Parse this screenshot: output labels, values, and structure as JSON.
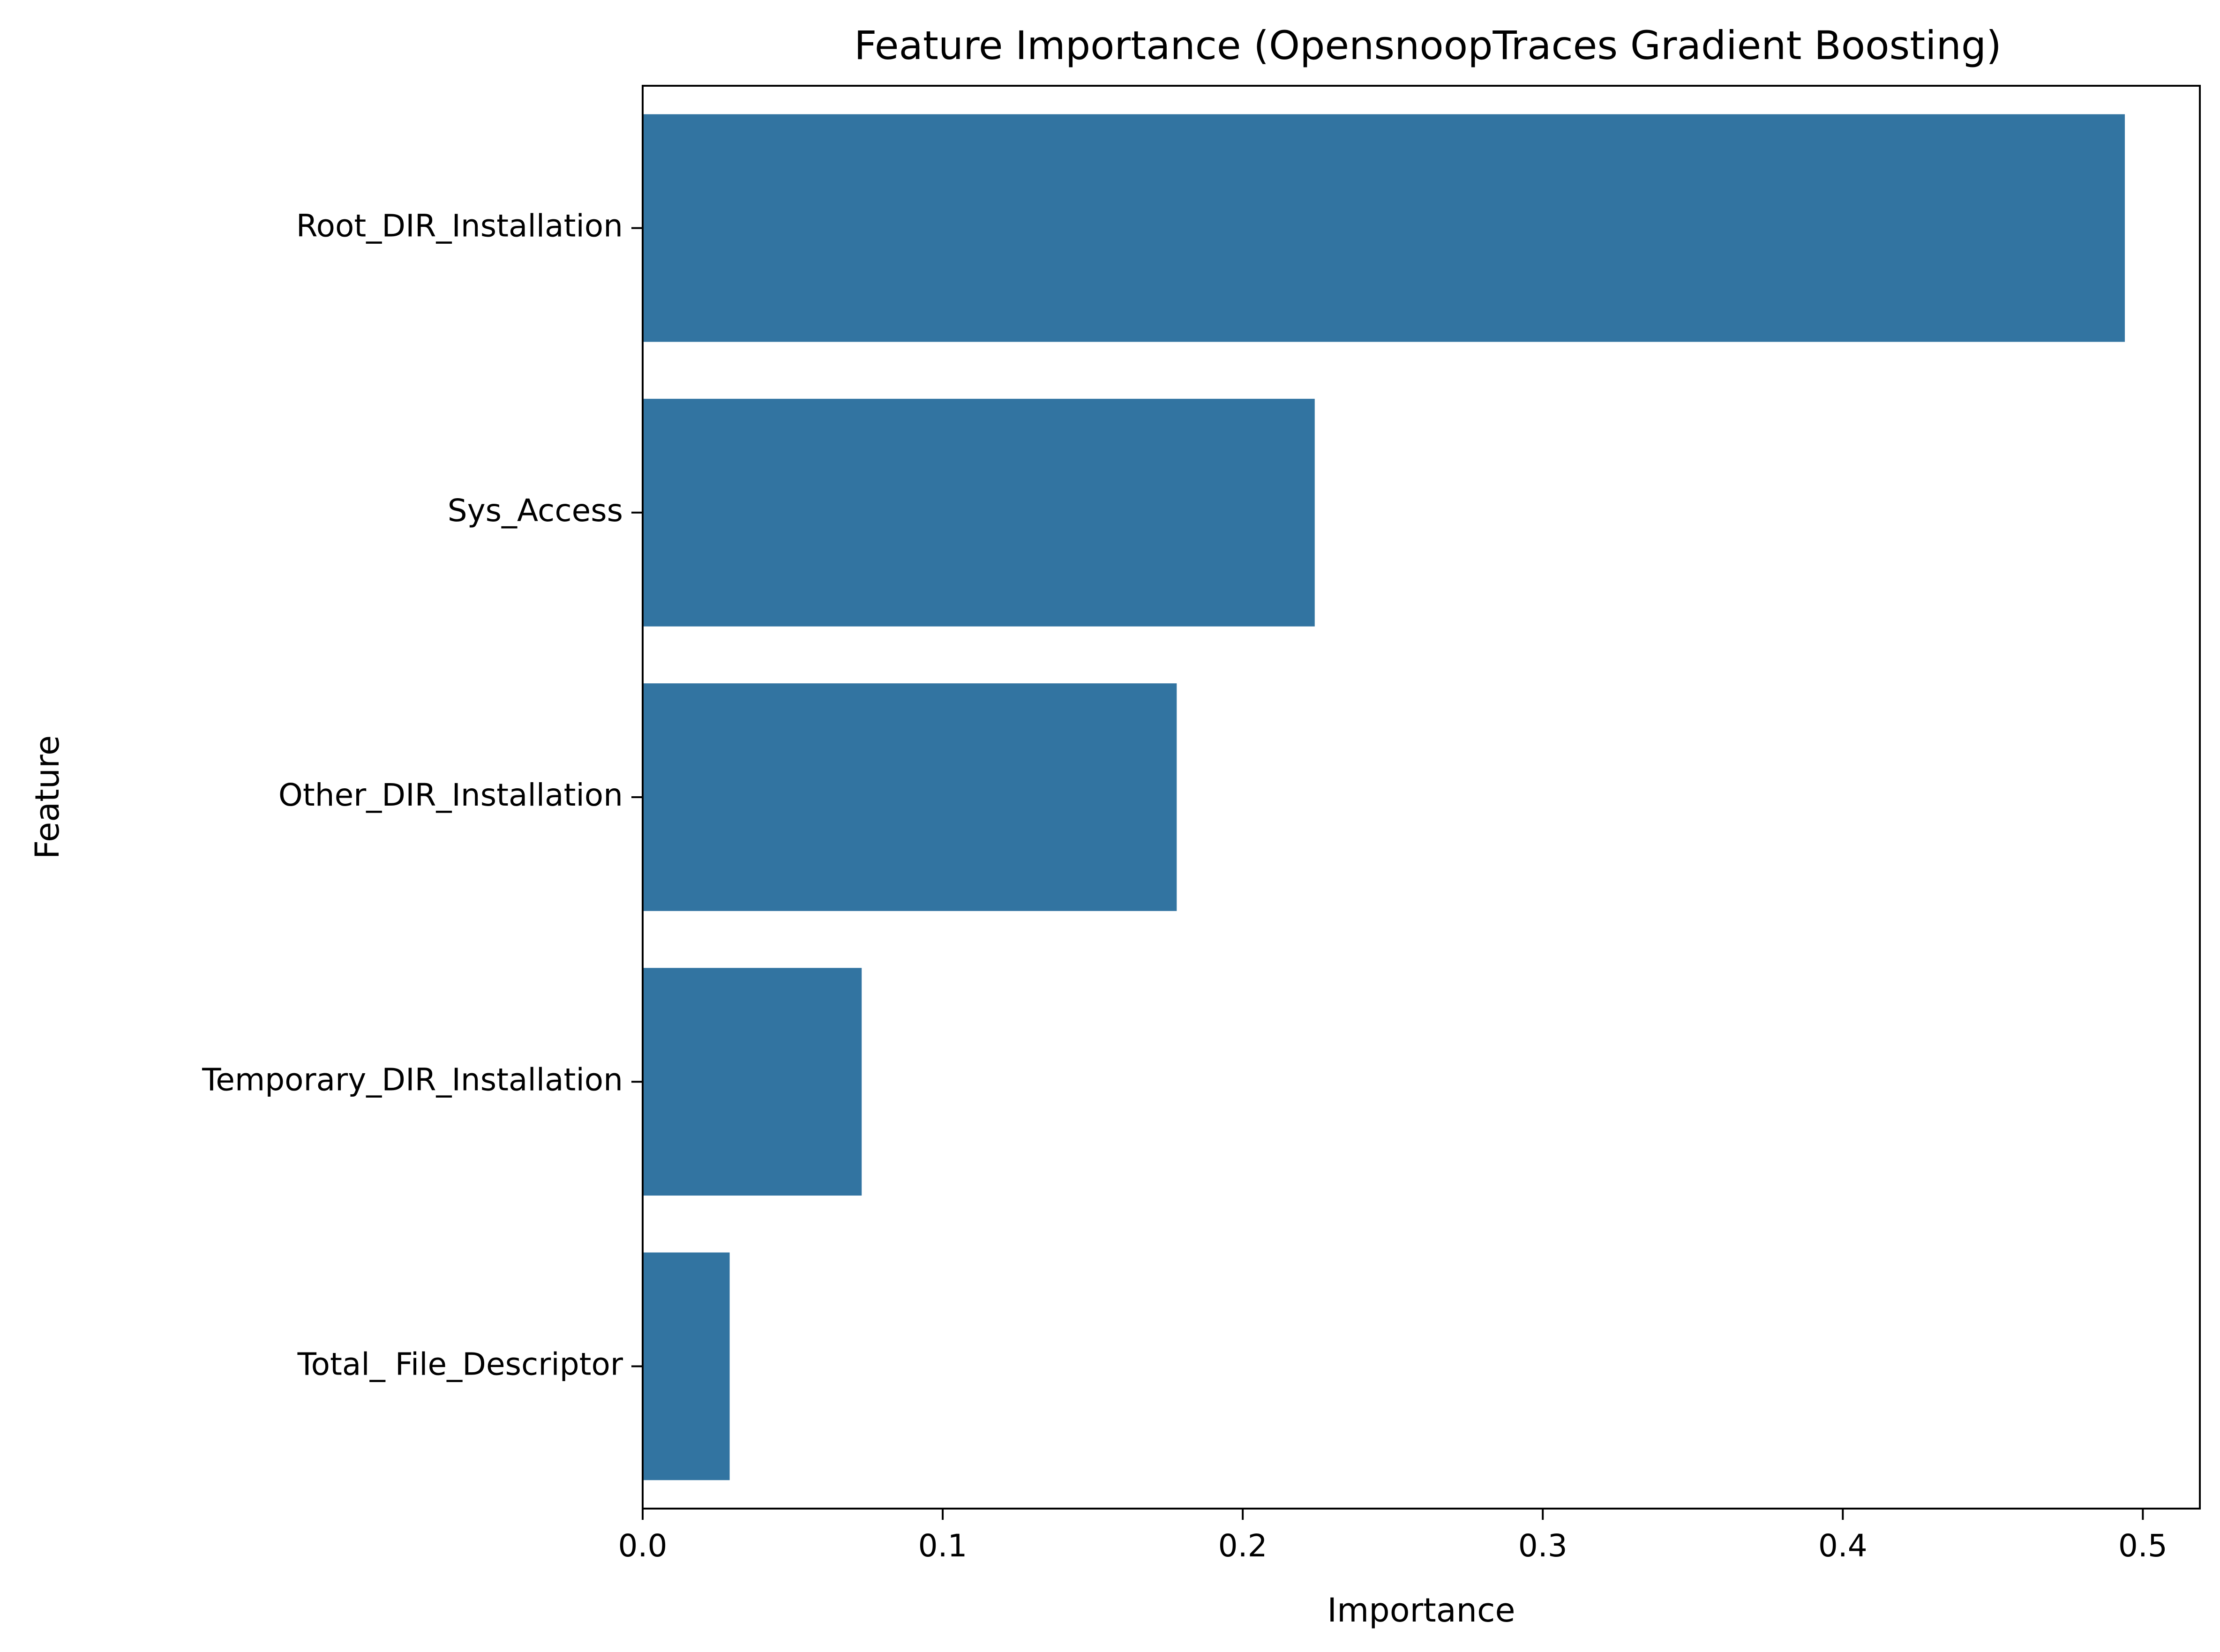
{
  "chart_data": {
    "type": "bar",
    "orientation": "horizontal",
    "title": "Feature Importance (OpensnoopTraces Gradient Boosting)",
    "xlabel": "Importance",
    "ylabel": "Feature",
    "categories": [
      "Root_DIR_Installation",
      "Sys_Access",
      "Other_DIR_Installation",
      "Temporary_DIR_Installation",
      "Total_ File_Descriptor"
    ],
    "values": [
      0.494,
      0.224,
      0.178,
      0.073,
      0.029
    ],
    "xlim": [
      0,
      0.519
    ],
    "xticks": [
      0.0,
      0.1,
      0.2,
      0.3,
      0.4,
      0.5
    ],
    "xtick_labels": [
      "0.0",
      "0.1",
      "0.2",
      "0.3",
      "0.4",
      "0.5"
    ],
    "bar_color": "#3274a1",
    "grid": false,
    "legend": null
  }
}
